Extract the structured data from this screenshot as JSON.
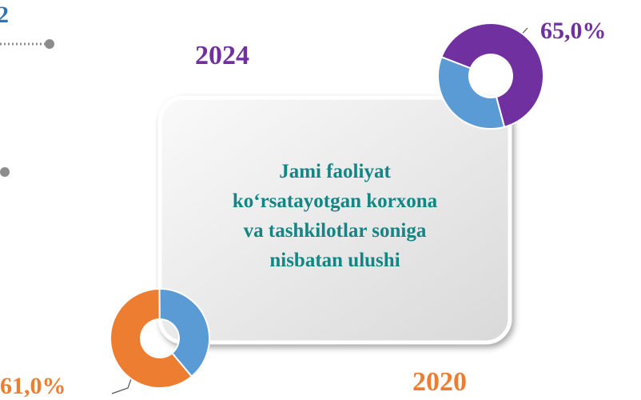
{
  "chart_data": [
    {
      "type": "pie",
      "title": "2024",
      "values": [
        65,
        35
      ],
      "value_labels": [
        "65,0%",
        null
      ],
      "colors": [
        "#7030a0",
        "#5b9bd5"
      ],
      "title_color": "#7030a0"
    },
    {
      "type": "pie",
      "title": "2020",
      "values": [
        61,
        39
      ],
      "value_labels": [
        "61,0%",
        null
      ],
      "colors": [
        "#ed7d31",
        "#5b9bd5"
      ],
      "title_color": "#ed7d31"
    }
  ],
  "fragment": {
    "label": "2"
  },
  "center_box": {
    "lines": [
      "Jami faoliyat",
      "ko‘rsatayotgan korxona",
      "va tashkilotlar soniga",
      "nisbatan ulushi"
    ]
  }
}
